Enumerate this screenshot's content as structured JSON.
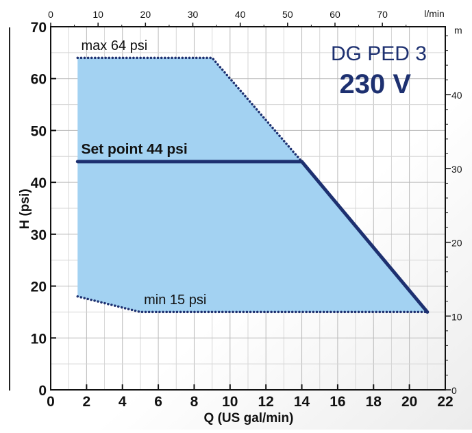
{
  "chart_data": {
    "type": "area",
    "title": "DG PED 3",
    "subtitle": "230 V",
    "xlabel": "Q (US gal/min)",
    "ylabel": "H (psi)",
    "xlim": [
      0,
      22
    ],
    "ylim": [
      0,
      70
    ],
    "x_ticks": [
      "0",
      "2",
      "4",
      "6",
      "8",
      "10",
      "12",
      "14",
      "16",
      "18",
      "20",
      "22"
    ],
    "y_ticks": [
      "0",
      "10",
      "20",
      "30",
      "40",
      "50",
      "60",
      "70"
    ],
    "top_axis": {
      "unit": "l/min",
      "ticks": [
        "0",
        "10",
        "20",
        "30",
        "40",
        "50",
        "60",
        "70"
      ]
    },
    "right_axis": {
      "unit": "m",
      "ticks": [
        "0",
        "10",
        "20",
        "30",
        "40"
      ]
    },
    "grid": true,
    "operating_area": {
      "x": [
        1.5,
        9,
        14,
        21,
        5,
        1.5
      ],
      "y": [
        64,
        64,
        44,
        15,
        15,
        18
      ]
    },
    "series": [
      {
        "name": "max 64 psi",
        "style": "dotted",
        "x": [
          1.5,
          9,
          14
        ],
        "y": [
          64,
          64,
          44
        ]
      },
      {
        "name": "min 15 psi",
        "style": "dotted",
        "x": [
          1.5,
          5,
          21
        ],
        "y": [
          18,
          15,
          15
        ]
      },
      {
        "name": "Set point 44 psi",
        "style": "solid",
        "x": [
          1.5,
          14,
          21
        ],
        "y": [
          44,
          44,
          15
        ]
      }
    ],
    "annotations": [
      {
        "text": "max 64 psi",
        "x": 1.7,
        "y": 65.5
      },
      {
        "text": "Set point 44 psi",
        "x": 1.7,
        "y": 45.5
      },
      {
        "text": "min 15 psi",
        "x": 5.2,
        "y": 16.5
      }
    ],
    "colors": {
      "area_fill": "#a3d2f2",
      "line": "#1d3070",
      "title": "#1d3070"
    }
  }
}
